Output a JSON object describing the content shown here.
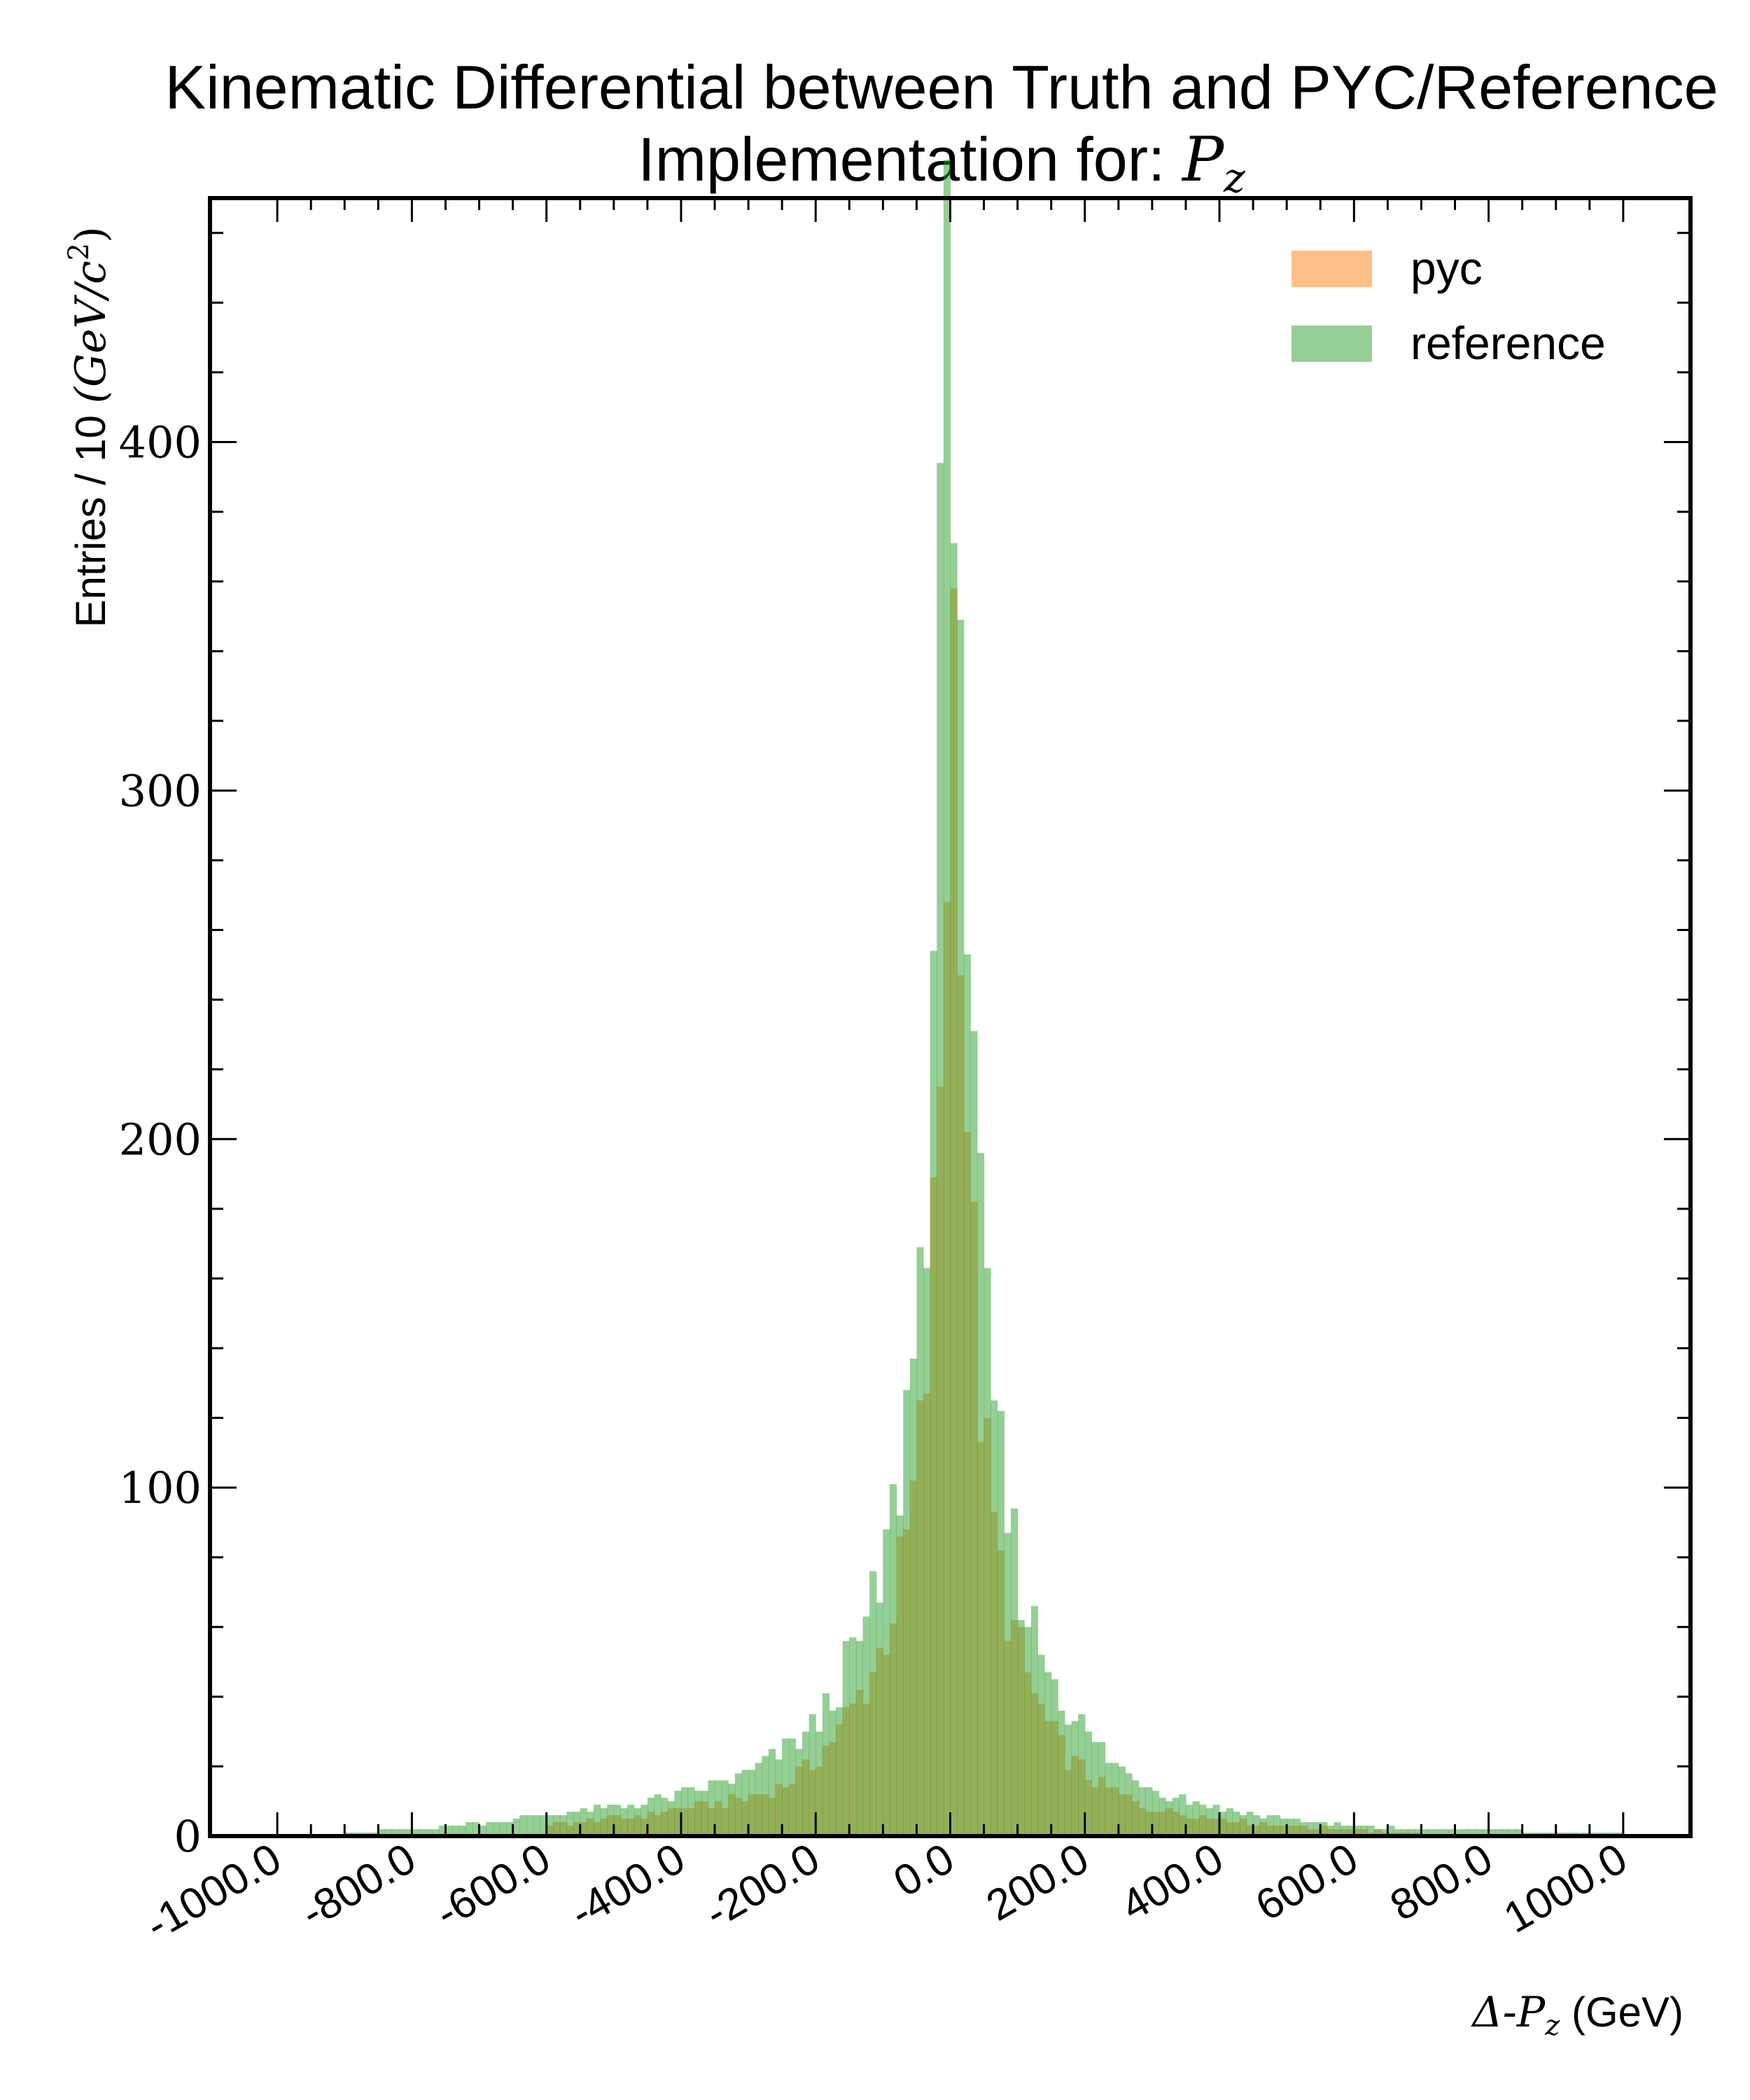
{
  "chart_data": {
    "type": "bar",
    "title_line1": "Kinematic Differential between Truth and PYC/Reference",
    "title_line2_prefix": "Implementation for: ",
    "title_line2_math": "P",
    "title_line2_sub": "z",
    "ylabel_prefix": "Entries / 10 ",
    "ylabel_math": "(GeV/c",
    "ylabel_sup": "2",
    "ylabel_close": ")",
    "xlabel_math": "Δ-P",
    "xlabel_sub": "z",
    "xlabel_unit": " (GeV)",
    "xlim": [
      -1100,
      1100
    ],
    "ylim": [
      0,
      470
    ],
    "x_ticks": [
      -1000,
      -800,
      -600,
      -400,
      -200,
      0,
      200,
      400,
      600,
      800,
      1000
    ],
    "x_tick_labels": [
      "-1000.0",
      "-800.0",
      "-600.0",
      "-400.0",
      "-200.0",
      "0.0",
      "200.0",
      "400.0",
      "600.0",
      "800.0",
      "1000.0"
    ],
    "y_ticks": [
      0,
      100,
      200,
      300,
      400
    ],
    "y_tick_labels": [
      "0",
      "100",
      "200",
      "300",
      "400"
    ],
    "bin_width": 10,
    "legend": {
      "position": "top-right"
    },
    "series": [
      {
        "name": "pyc",
        "color": "#ff7f0e",
        "opacity": 0.5,
        "points": [
          [
            -600,
            3
          ],
          [
            -500,
            5
          ],
          [
            -400,
            8
          ],
          [
            -300,
            11
          ],
          [
            -250,
            14
          ],
          [
            -200,
            22
          ],
          [
            -150,
            35
          ],
          [
            -120,
            46
          ],
          [
            -100,
            55
          ],
          [
            -80,
            70
          ],
          [
            -60,
            90
          ],
          [
            -40,
            120
          ],
          [
            -30,
            150
          ],
          [
            -20,
            190
          ],
          [
            -10,
            250
          ],
          [
            0,
            340
          ],
          [
            10,
            355
          ],
          [
            20,
            245
          ],
          [
            30,
            185
          ],
          [
            40,
            140
          ],
          [
            60,
            95
          ],
          [
            80,
            70
          ],
          [
            100,
            55
          ],
          [
            150,
            30
          ],
          [
            200,
            18
          ],
          [
            250,
            12
          ],
          [
            300,
            8
          ],
          [
            400,
            5
          ],
          [
            500,
            3
          ],
          [
            600,
            2
          ],
          [
            700,
            1
          ]
        ]
      },
      {
        "name": "reference",
        "color": "#2ca02c",
        "opacity": 0.5,
        "points": [
          [
            -900,
            1
          ],
          [
            -800,
            2
          ],
          [
            -700,
            4
          ],
          [
            -600,
            6
          ],
          [
            -500,
            8
          ],
          [
            -400,
            12
          ],
          [
            -300,
            18
          ],
          [
            -250,
            24
          ],
          [
            -200,
            32
          ],
          [
            -150,
            50
          ],
          [
            -120,
            62
          ],
          [
            -100,
            75
          ],
          [
            -80,
            98
          ],
          [
            -60,
            130
          ],
          [
            -40,
            175
          ],
          [
            -30,
            220
          ],
          [
            -20,
            300
          ],
          [
            -10,
            390
          ],
          [
            0,
            445
          ],
          [
            10,
            445
          ],
          [
            20,
            310
          ],
          [
            30,
            230
          ],
          [
            40,
            180
          ],
          [
            60,
            132
          ],
          [
            80,
            98
          ],
          [
            100,
            78
          ],
          [
            120,
            62
          ],
          [
            150,
            48
          ],
          [
            200,
            30
          ],
          [
            250,
            20
          ],
          [
            300,
            14
          ],
          [
            400,
            8
          ],
          [
            500,
            5
          ],
          [
            600,
            3
          ],
          [
            700,
            2
          ],
          [
            800,
            2
          ],
          [
            900,
            1
          ],
          [
            1000,
            1
          ]
        ]
      }
    ]
  }
}
